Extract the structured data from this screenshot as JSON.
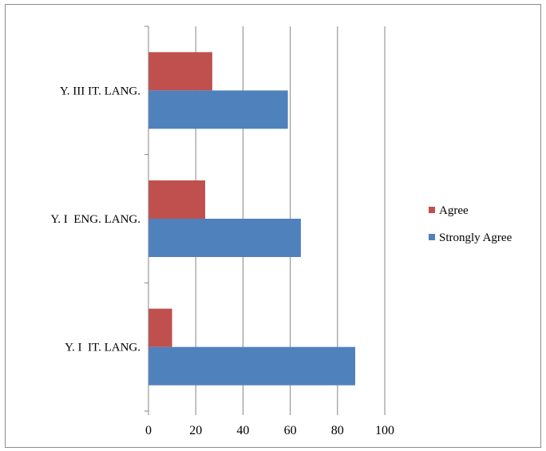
{
  "chart_data": {
    "type": "bar",
    "orientation": "horizontal",
    "categories": [
      "Y. I  IT. LANG.",
      "Y. I  ENG. LANG.",
      "Y. III IT. LANG."
    ],
    "series": [
      {
        "name": "Strongly Agree",
        "values": [
          87.5,
          64.5,
          59
        ],
        "color": "#4f81bd"
      },
      {
        "name": "Agree",
        "values": [
          10,
          24,
          27
        ],
        "color": "#c0504d"
      }
    ],
    "xlim": [
      0,
      100
    ],
    "xticks": [
      "0",
      "20",
      "40",
      "60",
      "80",
      "100"
    ],
    "legend_order": [
      "Agree",
      "Strongly Agree"
    ],
    "grid": true,
    "legend_position": "right"
  }
}
